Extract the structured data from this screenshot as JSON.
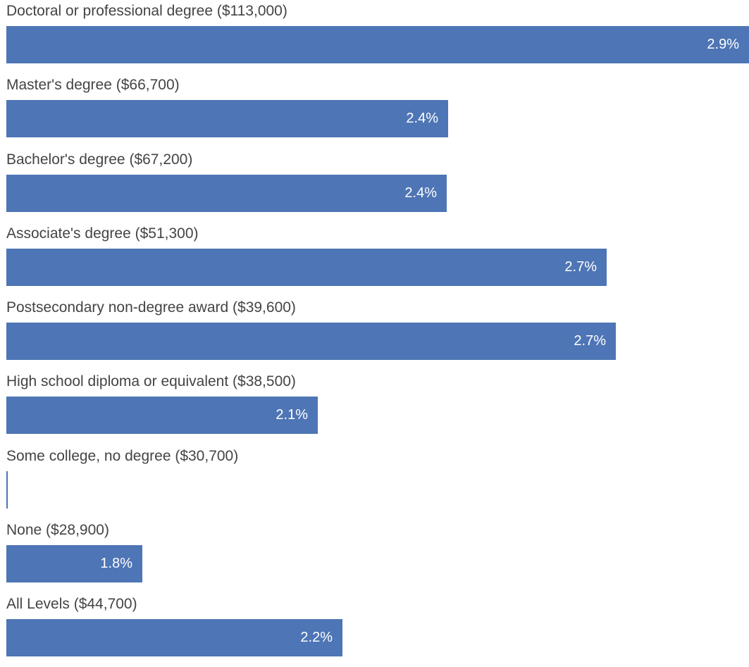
{
  "chart_data": {
    "type": "bar",
    "orientation": "horizontal",
    "categories": [
      "Doctoral or professional degree ($113,000)",
      "Master's degree ($66,700)",
      "Bachelor's degree ($67,200)",
      "Associate's degree ($51,300)",
      "Postsecondary non-degree award ($39,600)",
      "High school diploma or equivalent ($38,500)",
      "Some college, no degree ($30,700)",
      "None ($28,900)",
      "All Levels ($44,700)"
    ],
    "values": [
      2.9,
      2.4,
      2.4,
      2.7,
      2.7,
      2.1,
      0,
      1.8,
      2.2
    ],
    "value_labels": [
      "2.9%",
      "2.4%",
      "2.4%",
      "2.7%",
      "2.7%",
      "2.1%",
      "",
      "1.8%",
      "2.2%"
    ],
    "bar_color": "#4e75b5",
    "label_color": "#444444",
    "title": "",
    "xlabel": "",
    "ylabel": "",
    "grid": false,
    "legend": "none"
  }
}
